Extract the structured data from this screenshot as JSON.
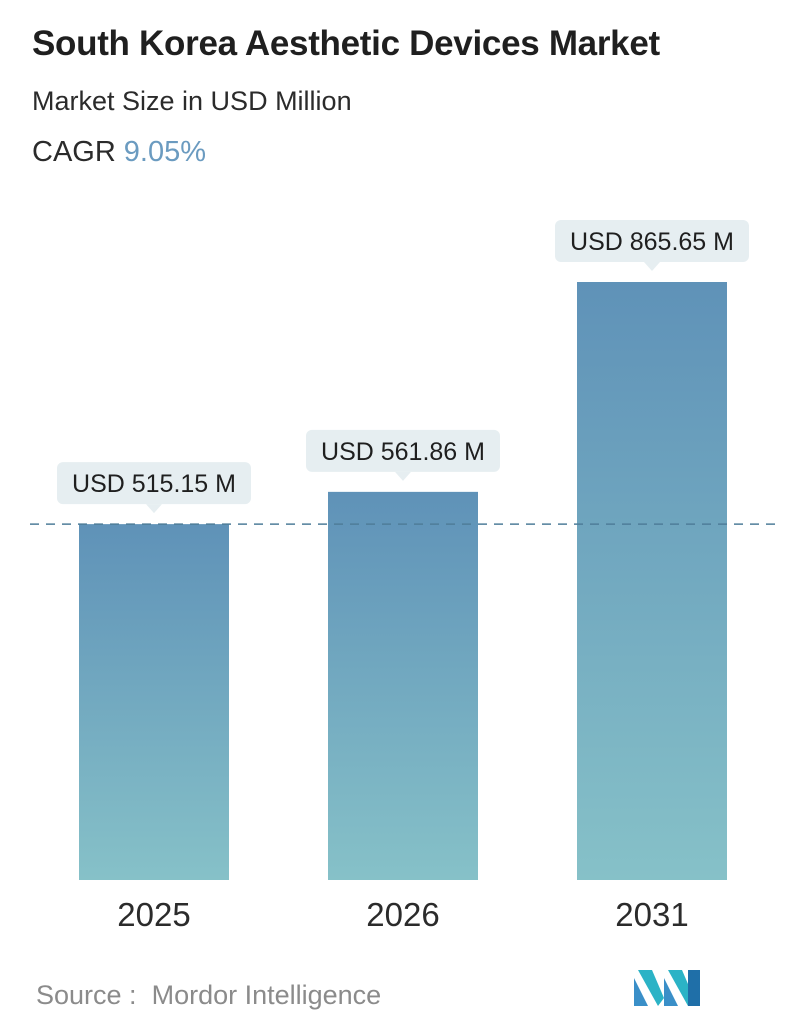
{
  "header": {
    "title": "South Korea Aesthetic Devices Market",
    "subtitle": "Market Size in USD Million",
    "cagr_label": "CAGR",
    "cagr_value": "9.05%"
  },
  "chart_data": {
    "type": "bar",
    "categories": [
      "2025",
      "2026",
      "2031"
    ],
    "values": [
      515.15,
      561.86,
      865.65
    ],
    "data_labels": [
      "USD 515.15 M",
      "USD 561.86 M",
      "USD 865.65 M"
    ],
    "title": "South Korea Aesthetic Devices Market",
    "subtitle": "Market Size in USD Million",
    "xlabel": "",
    "ylabel": "",
    "reference_line": 515.15,
    "grid": false,
    "colors": {
      "bar_top": "#5f92b8",
      "bar_bottom": "#86c1c8",
      "label_bg": "#e6eef1",
      "reference_line": "#4f7d99"
    }
  },
  "footer": {
    "source_label": "Source :",
    "source_name": "Mordor Intelligence",
    "logo_icon": "mordor-intelligence-logo-icon"
  }
}
